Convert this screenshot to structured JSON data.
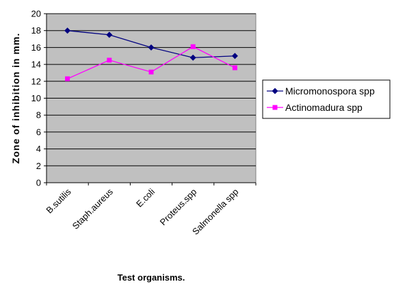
{
  "chart_data": {
    "type": "line",
    "title": "",
    "categories": [
      "B.sutilis",
      "Staph.aureus",
      "E.coli",
      "Proteus.spp",
      "Salmonella spp"
    ],
    "series": [
      {
        "name": "Micromonospora spp",
        "values": [
          18.0,
          17.5,
          16.0,
          14.8,
          15.0
        ],
        "color": "#000080",
        "marker": "diamond"
      },
      {
        "name": "Actinomadura spp",
        "values": [
          12.3,
          14.5,
          13.1,
          16.1,
          13.6
        ],
        "color": "#ff00ff",
        "marker": "square"
      }
    ],
    "xlabel": "Test organisms.",
    "ylabel": "Zone of inhibition in mm.",
    "ylim": [
      0,
      20
    ],
    "yticks": [
      0,
      2,
      4,
      6,
      8,
      10,
      12,
      14,
      16,
      18,
      20
    ],
    "grid": true,
    "plot_background": "#c0c0c0",
    "legend_position": "right"
  }
}
